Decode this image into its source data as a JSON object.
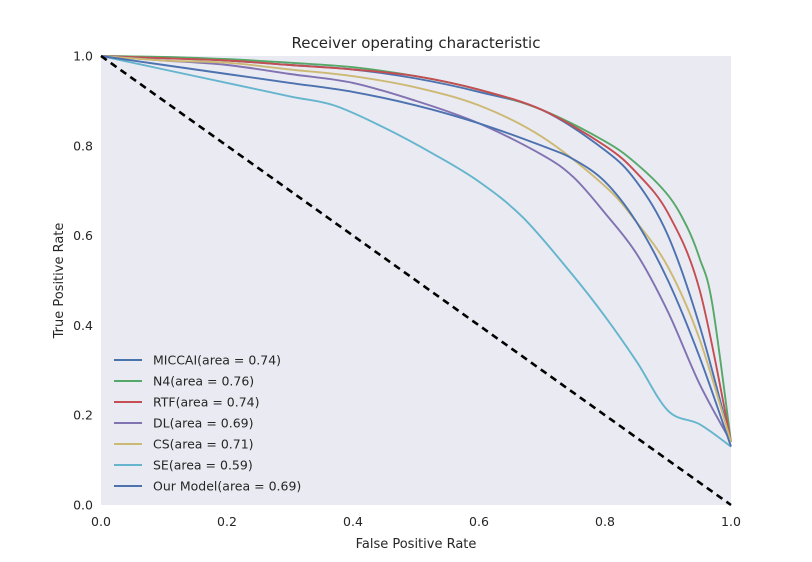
{
  "chart_data": {
    "type": "line",
    "title": "Receiver operating characteristic",
    "xlabel": "False Positive Rate",
    "ylabel": "True Positive Rate",
    "xlim": [
      0.0,
      1.0
    ],
    "ylim": [
      0.0,
      1.0
    ],
    "xticks": [
      "0.0",
      "0.2",
      "0.4",
      "0.6",
      "0.8",
      "1.0"
    ],
    "yticks": [
      "0.0",
      "0.2",
      "0.4",
      "0.6",
      "0.8",
      "1.0"
    ],
    "grid": false,
    "background": "#eaeaf2",
    "legend_position": "lower-left",
    "diagonal": {
      "x": [
        0.0,
        1.0
      ],
      "y": [
        1.0,
        0.0
      ],
      "color": "#000000",
      "style": "dashed"
    },
    "series": [
      {
        "name": "MICCAI(area = 0.74)",
        "color": "#4c72b0",
        "x": [
          0.0,
          0.1,
          0.2,
          0.3,
          0.4,
          0.5,
          0.6,
          0.7,
          0.8,
          0.85,
          0.9,
          0.95,
          1.0
        ],
        "y": [
          1.0,
          0.995,
          0.99,
          0.98,
          0.97,
          0.95,
          0.92,
          0.88,
          0.79,
          0.72,
          0.6,
          0.4,
          0.14
        ]
      },
      {
        "name": "N4(area = 0.76)",
        "color": "#55a868",
        "x": [
          0.0,
          0.1,
          0.2,
          0.3,
          0.4,
          0.5,
          0.6,
          0.7,
          0.8,
          0.85,
          0.9,
          0.93,
          0.95,
          0.97,
          1.0
        ],
        "y": [
          1.0,
          0.998,
          0.993,
          0.985,
          0.975,
          0.955,
          0.925,
          0.88,
          0.81,
          0.76,
          0.69,
          0.62,
          0.55,
          0.45,
          0.14
        ]
      },
      {
        "name": "RTF(area = 0.74)",
        "color": "#c44e52",
        "x": [
          0.0,
          0.1,
          0.2,
          0.3,
          0.4,
          0.5,
          0.6,
          0.7,
          0.8,
          0.85,
          0.9,
          0.95,
          1.0
        ],
        "y": [
          1.0,
          0.995,
          0.99,
          0.98,
          0.97,
          0.955,
          0.925,
          0.88,
          0.8,
          0.74,
          0.65,
          0.48,
          0.14
        ]
      },
      {
        "name": "DL(area = 0.69)",
        "color": "#8172b2",
        "x": [
          0.0,
          0.1,
          0.2,
          0.3,
          0.4,
          0.5,
          0.6,
          0.7,
          0.75,
          0.8,
          0.85,
          0.9,
          0.95,
          1.0
        ],
        "y": [
          1.0,
          0.99,
          0.98,
          0.96,
          0.94,
          0.9,
          0.85,
          0.78,
          0.73,
          0.65,
          0.56,
          0.43,
          0.27,
          0.14
        ]
      },
      {
        "name": "CS(area = 0.71)",
        "color": "#ccb974",
        "x": [
          0.0,
          0.1,
          0.2,
          0.3,
          0.4,
          0.5,
          0.6,
          0.7,
          0.8,
          0.85,
          0.9,
          0.95,
          1.0
        ],
        "y": [
          1.0,
          0.99,
          0.985,
          0.97,
          0.955,
          0.93,
          0.89,
          0.82,
          0.71,
          0.63,
          0.53,
          0.37,
          0.14
        ]
      },
      {
        "name": "SE(area = 0.59)",
        "color": "#64b5cd",
        "x": [
          0.0,
          0.1,
          0.2,
          0.3,
          0.37,
          0.45,
          0.53,
          0.6,
          0.67,
          0.75,
          0.8,
          0.85,
          0.9,
          0.95,
          1.0
        ],
        "y": [
          1.0,
          0.97,
          0.94,
          0.91,
          0.89,
          0.84,
          0.78,
          0.72,
          0.64,
          0.51,
          0.42,
          0.32,
          0.21,
          0.18,
          0.13
        ]
      },
      {
        "name": "Our Model(area = 0.69)",
        "color": "#4c72b0",
        "x": [
          0.0,
          0.1,
          0.2,
          0.3,
          0.4,
          0.5,
          0.6,
          0.7,
          0.75,
          0.8,
          0.85,
          0.9,
          0.95,
          1.0
        ],
        "y": [
          1.0,
          0.98,
          0.96,
          0.94,
          0.92,
          0.89,
          0.85,
          0.8,
          0.77,
          0.72,
          0.63,
          0.5,
          0.33,
          0.13
        ]
      }
    ]
  }
}
